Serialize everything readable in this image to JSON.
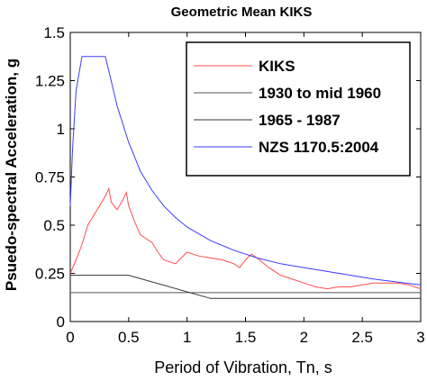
{
  "chart_data": {
    "type": "line",
    "title": "Geometric Mean KIKS",
    "xlabel": "Period of Vibration, Tn, s",
    "ylabel": "Psuedo-spectral Acceleration, g",
    "xlim": [
      0,
      3
    ],
    "ylim": [
      0,
      1.5
    ],
    "xticks": [
      "0",
      "0.5",
      "1",
      "1.5",
      "2",
      "2.5",
      "3"
    ],
    "yticks": [
      "0",
      "0.25",
      "0.5",
      "0.75",
      "1",
      "1.25",
      "1.5"
    ],
    "grid": false,
    "legend_position": "top-right",
    "series": [
      {
        "name": "KIKS",
        "color": "#ff4c4c",
        "x": [
          0,
          0.05,
          0.1,
          0.15,
          0.2,
          0.25,
          0.3,
          0.33,
          0.35,
          0.4,
          0.45,
          0.48,
          0.5,
          0.55,
          0.6,
          0.65,
          0.7,
          0.75,
          0.8,
          0.9,
          1.0,
          1.1,
          1.2,
          1.3,
          1.4,
          1.45,
          1.5,
          1.55,
          1.6,
          1.7,
          1.8,
          1.9,
          2.0,
          2.1,
          2.2,
          2.3,
          2.4,
          2.5,
          2.6,
          2.7,
          2.8,
          2.9,
          3.0
        ],
        "values": [
          0.25,
          0.32,
          0.4,
          0.5,
          0.55,
          0.6,
          0.65,
          0.69,
          0.62,
          0.58,
          0.63,
          0.67,
          0.6,
          0.52,
          0.45,
          0.43,
          0.41,
          0.36,
          0.32,
          0.3,
          0.36,
          0.34,
          0.33,
          0.32,
          0.3,
          0.28,
          0.32,
          0.35,
          0.33,
          0.28,
          0.24,
          0.22,
          0.2,
          0.18,
          0.17,
          0.18,
          0.18,
          0.19,
          0.2,
          0.2,
          0.2,
          0.19,
          0.17
        ]
      },
      {
        "name": "1930 to mid 1960",
        "color": "#555555",
        "x": [
          0,
          3.0
        ],
        "values": [
          0.15,
          0.15
        ]
      },
      {
        "name": "1965 - 1987",
        "color": "#333333",
        "x": [
          0,
          0.5,
          1.2,
          3.0
        ],
        "values": [
          0.24,
          0.24,
          0.12,
          0.12
        ]
      },
      {
        "name": "NZS 1170.5:2004",
        "color": "#3c3cff",
        "x": [
          0,
          0.02,
          0.05,
          0.1,
          0.3,
          0.35,
          0.4,
          0.5,
          0.6,
          0.7,
          0.8,
          0.9,
          1.0,
          1.2,
          1.4,
          1.6,
          1.8,
          2.0,
          2.2,
          2.4,
          2.6,
          2.8,
          3.0
        ],
        "values": [
          0.6,
          0.9,
          1.2,
          1.375,
          1.375,
          1.25,
          1.12,
          0.93,
          0.78,
          0.68,
          0.6,
          0.54,
          0.49,
          0.42,
          0.37,
          0.33,
          0.3,
          0.28,
          0.26,
          0.24,
          0.22,
          0.205,
          0.19
        ]
      }
    ]
  }
}
